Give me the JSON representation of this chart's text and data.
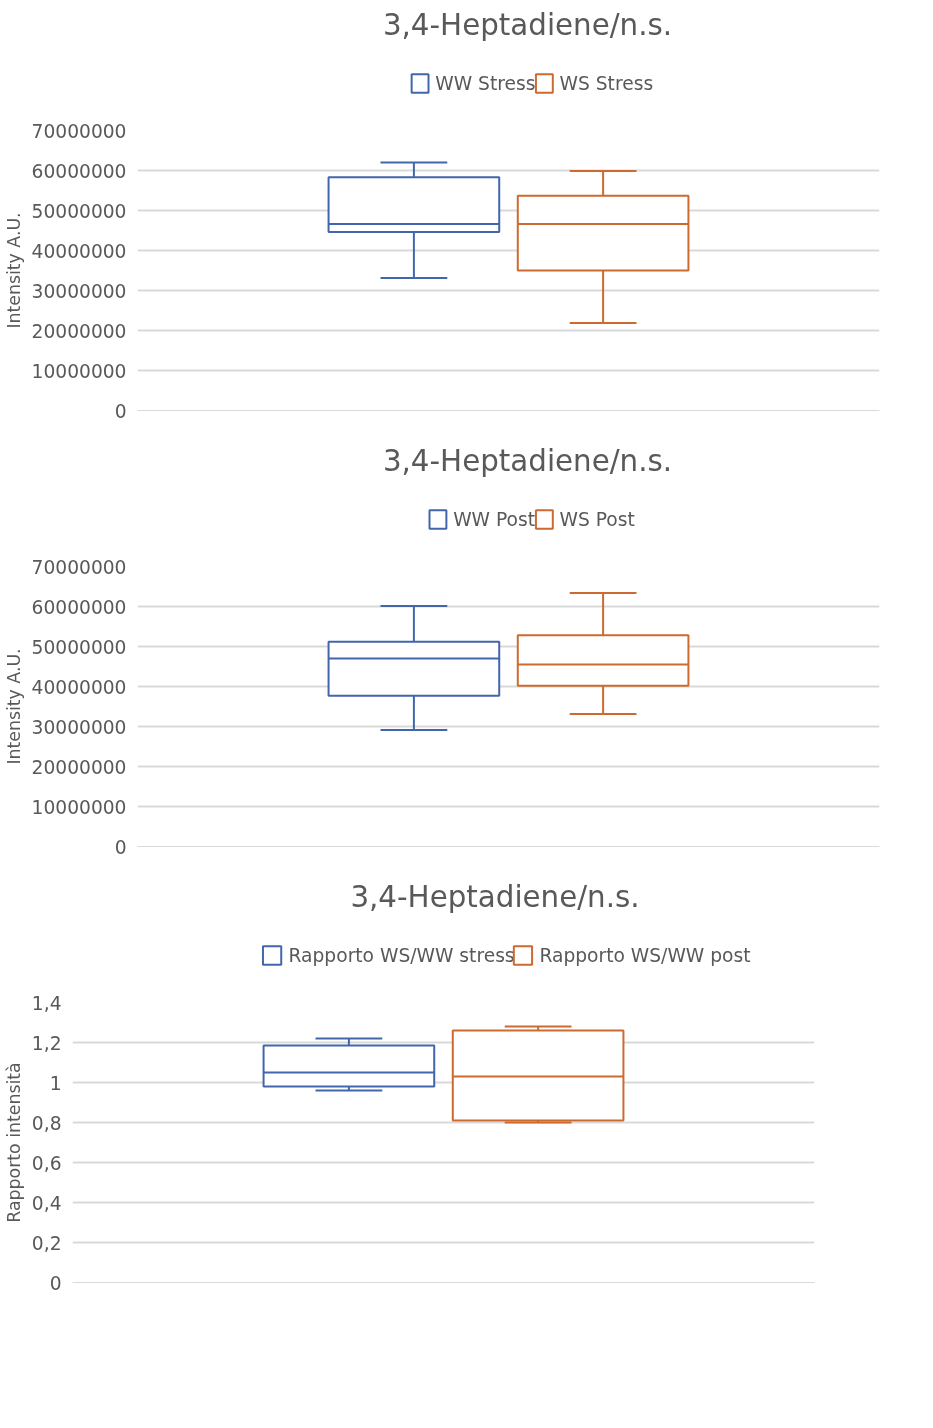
{
  "chart_data": [
    {
      "type": "box",
      "title": "3,4-Heptadiene/n.s.",
      "ylabel": "Intensity A.U.",
      "categories": [
        null
      ],
      "ylim": [
        0,
        70000000
      ],
      "yticks": [
        0,
        10000000,
        20000000,
        30000000,
        40000000,
        50000000,
        60000000,
        70000000
      ],
      "grid": "y",
      "legend": "top",
      "tick_labels": "y",
      "series": [
        {
          "name": "WW Stress",
          "color": "#4266ac",
          "boxes": [
            {
              "low": 33100000,
              "q1": 44600000,
              "median": 46600000,
              "q3": 58300000,
              "high": 62000000
            }
          ]
        },
        {
          "name": "WS Stress",
          "color": "#cc6a2f",
          "boxes": [
            {
              "low": 21900000,
              "q1": 35000000,
              "median": 46600000,
              "q3": 53700000,
              "high": 59900000
            }
          ]
        }
      ]
    },
    {
      "type": "box",
      "title": "3,4-Heptadiene/n.s.",
      "ylabel": "Intensity A.U.",
      "categories": [
        null
      ],
      "ylim": [
        0,
        70000000
      ],
      "yticks": [
        0,
        10000000,
        20000000,
        30000000,
        40000000,
        50000000,
        60000000,
        70000000
      ],
      "grid": "y",
      "legend": "top",
      "tick_labels": "y",
      "series": [
        {
          "name": "WW Post",
          "color": "#4266ac",
          "boxes": [
            {
              "low": 29100000,
              "q1": 37700000,
              "median": 47000000,
              "q3": 51200000,
              "high": 60100000
            }
          ]
        },
        {
          "name": "WS Post",
          "color": "#cc6a2f",
          "boxes": [
            {
              "low": 33100000,
              "q1": 40200000,
              "median": 45500000,
              "q3": 52800000,
              "high": 63400000
            }
          ]
        }
      ]
    },
    {
      "type": "box",
      "title": "3,4-Heptadiene/n.s.",
      "ylabel": "Rapporto intensità",
      "categories": [
        null
      ],
      "ylim": [
        0,
        1.4
      ],
      "yticks": [
        0,
        {
          "value": 0.2,
          "label": "0,2"
        },
        {
          "value": 0.4,
          "label": "0,4"
        },
        {
          "value": 0.6,
          "label": "0,6"
        },
        {
          "value": 0.8,
          "label": "0,8"
        },
        1,
        {
          "value": 1.2,
          "label": "1,2"
        },
        {
          "value": 1.4,
          "label": "1,4"
        }
      ],
      "grid": "y",
      "legend": "top",
      "tick_labels": "y",
      "series": [
        {
          "name": "Rapporto WS/WW stress",
          "color": "#4266ac",
          "boxes": [
            {
              "low": 0.96,
              "q1": 0.98,
              "median": 1.05,
              "q3": 1.185,
              "high": 1.22
            }
          ]
        },
        {
          "name": "Rapporto WS/WW post",
          "color": "#cc6a2f",
          "boxes": [
            {
              "low": 0.8,
              "q1": 0.81,
              "median": 1.03,
              "q3": 1.26,
              "high": 1.28
            }
          ]
        }
      ]
    }
  ]
}
